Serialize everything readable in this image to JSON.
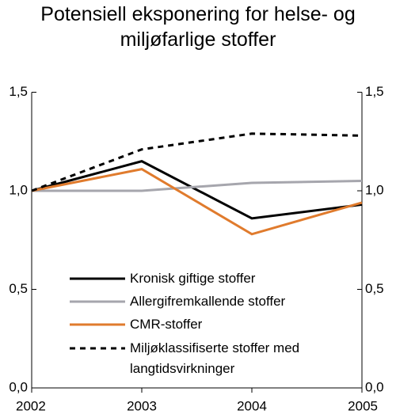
{
  "chart_data": {
    "type": "line",
    "title": "Potensiell eksponering for helse- og miljøfarlige stoffer",
    "x": [
      2002,
      2003,
      2004,
      2005
    ],
    "xlim": [
      2002,
      2005
    ],
    "xticks": [
      2002,
      2003,
      2004,
      2005
    ],
    "ylim": [
      0,
      1.5
    ],
    "yticks": [
      {
        "value": 0,
        "label": "0,0"
      },
      {
        "value": 0.5,
        "label": "0,5"
      },
      {
        "value": 1.0,
        "label": "1,0"
      },
      {
        "value": 1.5,
        "label": "1,5"
      }
    ],
    "series": [
      {
        "name": "Kronisk giftige stoffer",
        "color": "#000000",
        "values": [
          1.0,
          1.15,
          0.86,
          0.93
        ]
      },
      {
        "name": "Allergifremkallende stoffer",
        "color": "#a6a6ad",
        "values": [
          1.0,
          1.0,
          1.04,
          1.05
        ]
      },
      {
        "name": "CMR-stoffer",
        "color": "#e07b2d",
        "values": [
          1.0,
          1.11,
          0.78,
          0.94
        ]
      },
      {
        "name": "Miljøklassifiserte stoffer med langtidsvirkninger",
        "color": "#000000",
        "dashed": true,
        "values": [
          1.0,
          1.21,
          1.29,
          1.28
        ]
      }
    ],
    "legend": "lower left"
  }
}
